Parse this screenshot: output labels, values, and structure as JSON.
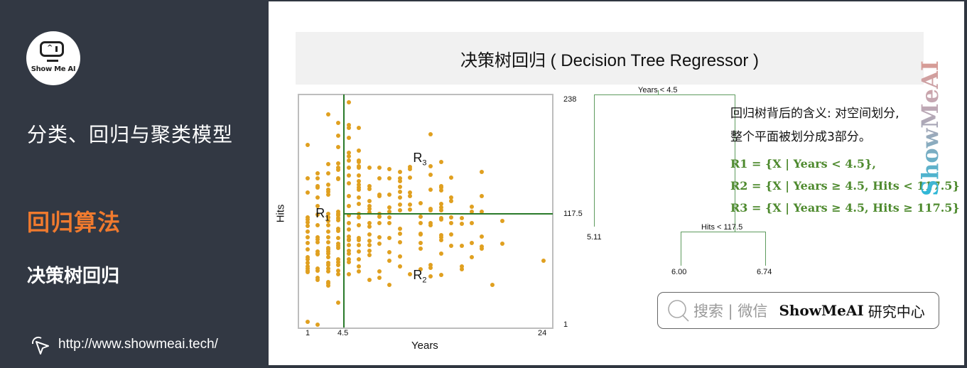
{
  "sidebar": {
    "logo_text": "Show Me AI",
    "course_title": "分类、回归与聚类模型",
    "section_title": "回归算法",
    "subsection_title": "决策树回归",
    "link_text": "http://www.showmeai.tech/",
    "link_icon": "cursor-click-icon",
    "accent_color": "#f07a2e"
  },
  "slide": {
    "title": "决策树回归 ( Decision Tree Regressor )",
    "explanation_line1": "回归树背后的含义: 对空间划分,",
    "explanation_line2": "整个平面被划分成3部分。",
    "rules": [
      "R1 = {X | Years < 4.5},",
      "R2 = {X | Years ≥ 4.5, Hits < 117.5}",
      "R3 = {X | Years ≥ 4.5, Hits ≥ 117.5}"
    ],
    "rule_color": "#4e8a2e",
    "watermark": "ShowMeAI"
  },
  "tree": {
    "root_split": "Years < 4.5",
    "left_leaf": "5.11",
    "right_split": "Hits < 117.5",
    "right_left_leaf": "6.00",
    "right_right_leaf": "6.74"
  },
  "search_banner": {
    "icon": "search-icon",
    "hint": "搜索 | 微信",
    "brand": "ShowMeAI",
    "brand_suffix": "研究中心"
  },
  "chart_data": {
    "type": "scatter",
    "title": "",
    "xlabel": "Years",
    "ylabel": "Hits",
    "xlim": [
      1,
      24
    ],
    "ylim": [
      1,
      238
    ],
    "x_ticks": [
      "1",
      "4.5",
      "24"
    ],
    "y_ticks": [
      "238",
      "117.5",
      "1"
    ],
    "grid": false,
    "point_color": "#e0a020",
    "split_color": "#2a7a2a",
    "splits": [
      {
        "axis": "x",
        "value": 4.5,
        "y_range": [
          1,
          238
        ]
      },
      {
        "axis": "y",
        "value": 117.5,
        "x_range": [
          4.5,
          24
        ]
      }
    ],
    "region_labels": [
      {
        "label": "R",
        "sub": "1",
        "x": 2.4,
        "y": 117
      },
      {
        "label": "R",
        "sub": "2",
        "x": 11.9,
        "y": 52
      },
      {
        "label": "R",
        "sub": "3",
        "x": 11.9,
        "y": 175
      }
    ],
    "points": [
      [
        1,
        190
      ],
      [
        1,
        155
      ],
      [
        1,
        140
      ],
      [
        1,
        114
      ],
      [
        1,
        112
      ],
      [
        1,
        109
      ],
      [
        1,
        105
      ],
      [
        1,
        99
      ],
      [
        1,
        93
      ],
      [
        1,
        87
      ],
      [
        1,
        80
      ],
      [
        1,
        72
      ],
      [
        1,
        70
      ],
      [
        1,
        66
      ],
      [
        1,
        62
      ],
      [
        1,
        60
      ],
      [
        1,
        58
      ],
      [
        1,
        56
      ],
      [
        1,
        4
      ],
      [
        2,
        160
      ],
      [
        2,
        155
      ],
      [
        2,
        147
      ],
      [
        2,
        145
      ],
      [
        2,
        135
      ],
      [
        2,
        126
      ],
      [
        2,
        117
      ],
      [
        2,
        106
      ],
      [
        2,
        93
      ],
      [
        2,
        91
      ],
      [
        2,
        88
      ],
      [
        2,
        78
      ],
      [
        2,
        76
      ],
      [
        2,
        75
      ],
      [
        2,
        60
      ],
      [
        2,
        58
      ],
      [
        2,
        50
      ],
      [
        2,
        48
      ],
      [
        2,
        1
      ],
      [
        3,
        222
      ],
      [
        3,
        170
      ],
      [
        3,
        160
      ],
      [
        3,
        148
      ],
      [
        3,
        143
      ],
      [
        3,
        141
      ],
      [
        3,
        138
      ],
      [
        3,
        118
      ],
      [
        3,
        114
      ],
      [
        3,
        110
      ],
      [
        3,
        106
      ],
      [
        3,
        99
      ],
      [
        3,
        93
      ],
      [
        3,
        88
      ],
      [
        3,
        82
      ],
      [
        3,
        80
      ],
      [
        3,
        78
      ],
      [
        3,
        76
      ],
      [
        3,
        72
      ],
      [
        3,
        66
      ],
      [
        3,
        64
      ],
      [
        3,
        60
      ],
      [
        3,
        57
      ],
      [
        3,
        46
      ],
      [
        3,
        44
      ],
      [
        3,
        42
      ],
      [
        4,
        213
      ],
      [
        4,
        200
      ],
      [
        4,
        188
      ],
      [
        4,
        171
      ],
      [
        4,
        166
      ],
      [
        4,
        164
      ],
      [
        4,
        155
      ],
      [
        4,
        154
      ],
      [
        4,
        120
      ],
      [
        4,
        118
      ],
      [
        4,
        116
      ],
      [
        4,
        113
      ],
      [
        4,
        111
      ],
      [
        4,
        102
      ],
      [
        4,
        100
      ],
      [
        4,
        92
      ],
      [
        4,
        86
      ],
      [
        4,
        84
      ],
      [
        4,
        82
      ],
      [
        4,
        70
      ],
      [
        4,
        67
      ],
      [
        4,
        64
      ],
      [
        4,
        58
      ],
      [
        4,
        54
      ],
      [
        4,
        24
      ],
      [
        5,
        235
      ],
      [
        5,
        211
      ],
      [
        5,
        208
      ],
      [
        5,
        198
      ],
      [
        5,
        182
      ],
      [
        5,
        178
      ],
      [
        5,
        174
      ],
      [
        5,
        166
      ],
      [
        5,
        158
      ],
      [
        5,
        150
      ],
      [
        5,
        136
      ],
      [
        5,
        126
      ],
      [
        5,
        116
      ],
      [
        5,
        108
      ],
      [
        5,
        101
      ],
      [
        5,
        94
      ],
      [
        5,
        91
      ],
      [
        5,
        90
      ],
      [
        5,
        85
      ],
      [
        5,
        79
      ],
      [
        5,
        76
      ],
      [
        5,
        70
      ],
      [
        5,
        67
      ],
      [
        5,
        54
      ],
      [
        6,
        208
      ],
      [
        6,
        184
      ],
      [
        6,
        174
      ],
      [
        6,
        172
      ],
      [
        6,
        168
      ],
      [
        6,
        166
      ],
      [
        6,
        158
      ],
      [
        6,
        152
      ],
      [
        6,
        148
      ],
      [
        6,
        145
      ],
      [
        6,
        143
      ],
      [
        6,
        135
      ],
      [
        6,
        128
      ],
      [
        6,
        118
      ],
      [
        6,
        114
      ],
      [
        6,
        106
      ],
      [
        6,
        92
      ],
      [
        6,
        90
      ],
      [
        6,
        85
      ],
      [
        6,
        78
      ],
      [
        6,
        70
      ],
      [
        6,
        62
      ],
      [
        6,
        57
      ],
      [
        7,
        166
      ],
      [
        7,
        147
      ],
      [
        7,
        144
      ],
      [
        7,
        131
      ],
      [
        7,
        126
      ],
      [
        7,
        123
      ],
      [
        7,
        119
      ],
      [
        7,
        108
      ],
      [
        7,
        104
      ],
      [
        7,
        96
      ],
      [
        7,
        89
      ],
      [
        7,
        85
      ],
      [
        7,
        79
      ],
      [
        7,
        74
      ],
      [
        7,
        48
      ],
      [
        8,
        166
      ],
      [
        8,
        155
      ],
      [
        8,
        138
      ],
      [
        8,
        136
      ],
      [
        8,
        118
      ],
      [
        8,
        115
      ],
      [
        8,
        108
      ],
      [
        8,
        93
      ],
      [
        8,
        86
      ],
      [
        8,
        57
      ],
      [
        8,
        50
      ],
      [
        9,
        165
      ],
      [
        9,
        155
      ],
      [
        9,
        138
      ],
      [
        9,
        124
      ],
      [
        9,
        120
      ],
      [
        9,
        114
      ],
      [
        9,
        108
      ],
      [
        9,
        92
      ],
      [
        9,
        77
      ],
      [
        9,
        68
      ],
      [
        9,
        43
      ],
      [
        10,
        162
      ],
      [
        10,
        155
      ],
      [
        10,
        152
      ],
      [
        10,
        146
      ],
      [
        10,
        141
      ],
      [
        10,
        135
      ],
      [
        10,
        127
      ],
      [
        10,
        121
      ],
      [
        10,
        102
      ],
      [
        10,
        97
      ],
      [
        10,
        88
      ],
      [
        10,
        73
      ],
      [
        10,
        62
      ],
      [
        11,
        167
      ],
      [
        11,
        165
      ],
      [
        11,
        156
      ],
      [
        11,
        140
      ],
      [
        11,
        136
      ],
      [
        11,
        127
      ],
      [
        11,
        122
      ],
      [
        11,
        54
      ],
      [
        12,
        129
      ],
      [
        12,
        115
      ],
      [
        12,
        108
      ],
      [
        12,
        97
      ],
      [
        12,
        96
      ],
      [
        12,
        87
      ],
      [
        12,
        81
      ],
      [
        12,
        59
      ],
      [
        13,
        201
      ],
      [
        13,
        168
      ],
      [
        13,
        159
      ],
      [
        13,
        143
      ],
      [
        13,
        123
      ],
      [
        13,
        121
      ],
      [
        13,
        108
      ],
      [
        13,
        106
      ],
      [
        13,
        64
      ],
      [
        13,
        61
      ],
      [
        13,
        52
      ],
      [
        14,
        172
      ],
      [
        14,
        147
      ],
      [
        14,
        145
      ],
      [
        14,
        142
      ],
      [
        14,
        128
      ],
      [
        14,
        124
      ],
      [
        14,
        121
      ],
      [
        14,
        113
      ],
      [
        14,
        112
      ],
      [
        14,
        95
      ],
      [
        14,
        93
      ],
      [
        14,
        90
      ],
      [
        14,
        76
      ],
      [
        14,
        53
      ],
      [
        15,
        156
      ],
      [
        15,
        135
      ],
      [
        15,
        131
      ],
      [
        15,
        114
      ],
      [
        15,
        108
      ],
      [
        15,
        96
      ],
      [
        15,
        84
      ],
      [
        16,
        113
      ],
      [
        16,
        107
      ],
      [
        16,
        84
      ],
      [
        16,
        62
      ],
      [
        16,
        59
      ],
      [
        17,
        125
      ],
      [
        17,
        120
      ],
      [
        17,
        108
      ],
      [
        17,
        87
      ],
      [
        17,
        72
      ],
      [
        18,
        162
      ],
      [
        18,
        136
      ],
      [
        18,
        120
      ],
      [
        18,
        94
      ],
      [
        18,
        83
      ],
      [
        18,
        81
      ],
      [
        19,
        43
      ],
      [
        20,
        110
      ],
      [
        20,
        86
      ],
      [
        24,
        68
      ]
    ]
  }
}
